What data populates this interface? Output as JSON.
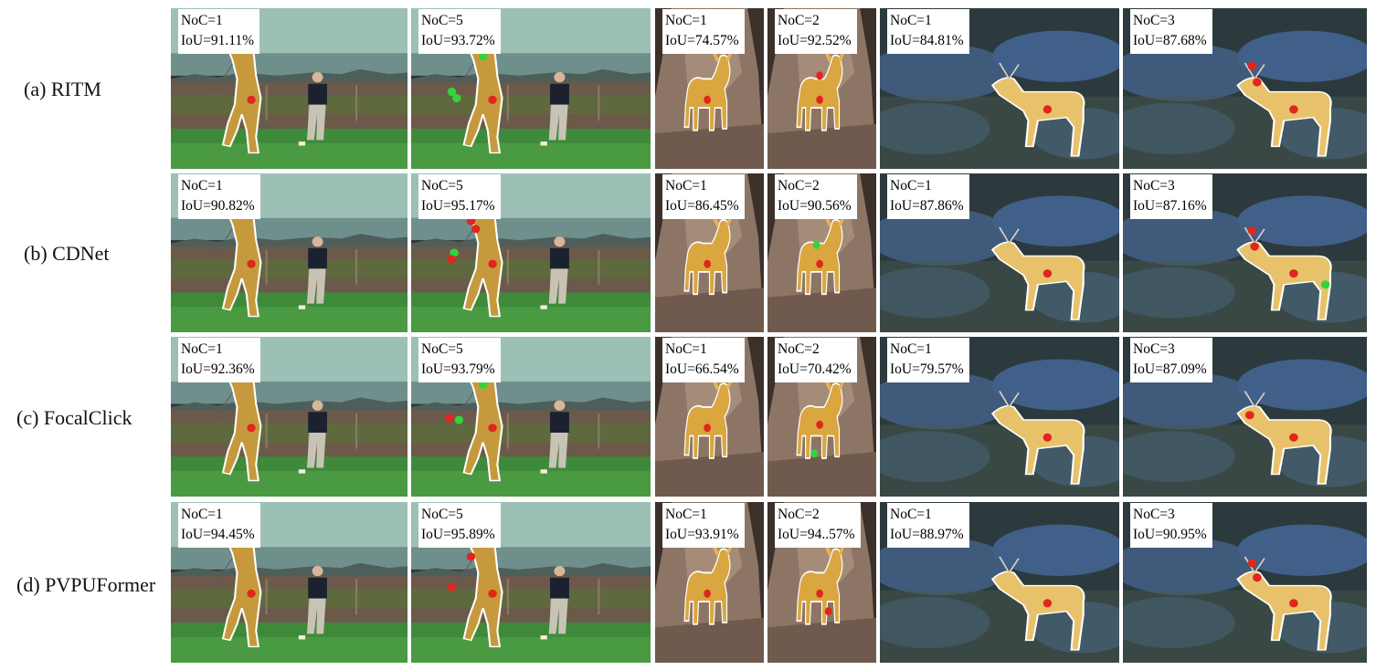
{
  "rows": [
    {
      "label": "(a) RITM",
      "cells": [
        {
          "noc": "NoC=1",
          "iou": "IoU=91.11%"
        },
        {
          "noc": "NoC=5",
          "iou": "IoU=93.72%"
        },
        {
          "noc": "NoC=1",
          "iou": "IoU=74.57%"
        },
        {
          "noc": "NoC=2",
          "iou": "IoU=92.52%"
        },
        {
          "noc": "NoC=1",
          "iou": "IoU=84.81%"
        },
        {
          "noc": "NoC=3",
          "iou": "IoU=87.68%"
        }
      ]
    },
    {
      "label": "(b) CDNet",
      "cells": [
        {
          "noc": "NoC=1",
          "iou": "IoU=90.82%"
        },
        {
          "noc": "NoC=5",
          "iou": "IoU=95.17%"
        },
        {
          "noc": "NoC=1",
          "iou": "IoU=86.45%"
        },
        {
          "noc": "NoC=2",
          "iou": "IoU=90.56%"
        },
        {
          "noc": "NoC=1",
          "iou": "IoU=87.86%"
        },
        {
          "noc": "NoC=3",
          "iou": "IoU=87.16%"
        }
      ]
    },
    {
      "label": "(c) FocalClick",
      "cells": [
        {
          "noc": "NoC=1",
          "iou": "IoU=92.36%"
        },
        {
          "noc": "NoC=5",
          "iou": "IoU=93.79%"
        },
        {
          "noc": "NoC=1",
          "iou": "IoU=66.54%"
        },
        {
          "noc": "NoC=2",
          "iou": "IoU=70.42%"
        },
        {
          "noc": "NoC=1",
          "iou": "IoU=79.57%"
        },
        {
          "noc": "NoC=3",
          "iou": "IoU=87.09%"
        }
      ]
    },
    {
      "label": "(d) PVPUFormer",
      "cells": [
        {
          "noc": "NoC=1",
          "iou": "IoU=94.45%"
        },
        {
          "noc": "NoC=5",
          "iou": "IoU=95.89%"
        },
        {
          "noc": "NoC=1",
          "iou": "IoU=93.91%"
        },
        {
          "noc": "NoC=2",
          "iou": "IoU=94..57%"
        },
        {
          "noc": "NoC=1",
          "iou": "IoU=88.97%"
        },
        {
          "noc": "NoC=3",
          "iou": "IoU=90.95%"
        }
      ]
    }
  ],
  "colors": {
    "mask_golfer": "#c69a3c",
    "mask_goat": "#d9a640",
    "mask_deer": "#e8c26a",
    "positive_click": "#e0261e",
    "negative_click": "#33d43a",
    "outline": "#ffffff"
  }
}
